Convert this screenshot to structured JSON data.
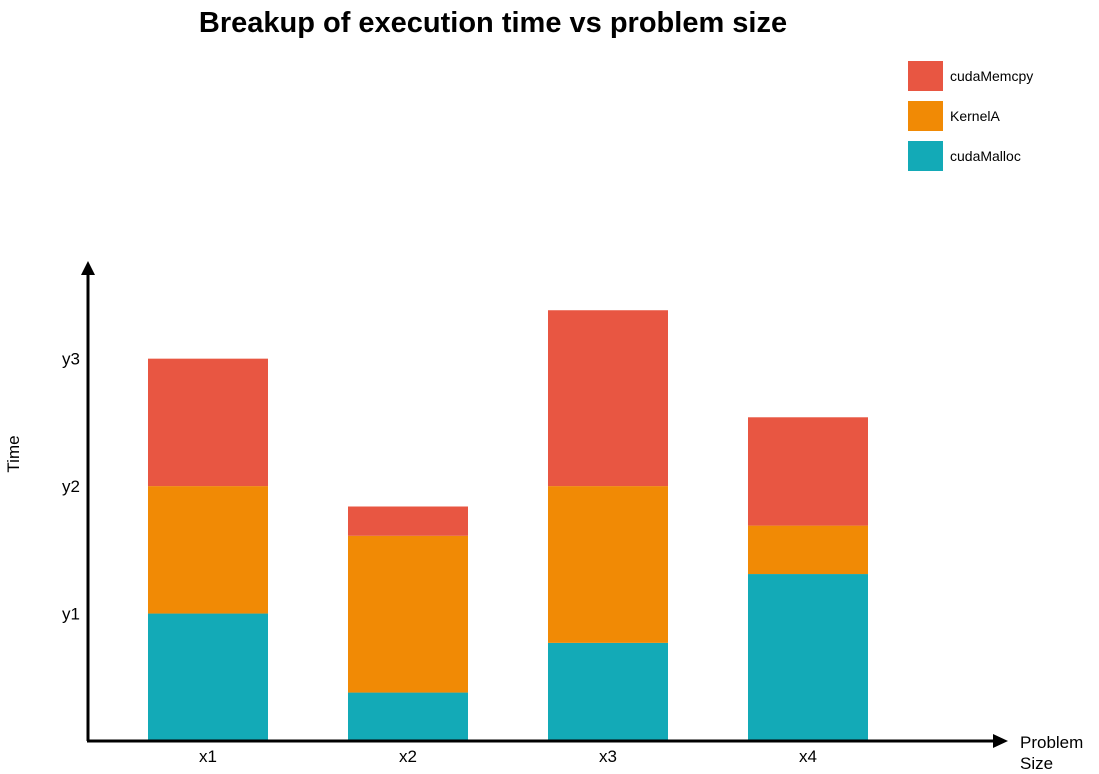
{
  "chart_data": {
    "type": "bar",
    "stacked": true,
    "title": "Breakup of execution time vs problem size",
    "xlabel": [
      "Problem",
      "Size"
    ],
    "ylabel": "Time",
    "categories": [
      "x1",
      "x2",
      "x3",
      "x4"
    ],
    "yticks": [
      {
        "label": "y1",
        "value": 1
      },
      {
        "label": "y2",
        "value": 2
      },
      {
        "label": "y3",
        "value": 3
      }
    ],
    "ylim": [
      0,
      3.68
    ],
    "grid": false,
    "legend_position": "top-right",
    "series": [
      {
        "name": "cudaMalloc",
        "color": "#13aab7",
        "values": [
          1.0,
          0.38,
          0.77,
          1.31
        ]
      },
      {
        "name": "KernelA",
        "color": "#f18a05",
        "values": [
          1.0,
          1.23,
          1.23,
          0.38
        ]
      },
      {
        "name": "cudaMemcpy",
        "color": "#e85642",
        "values": [
          1.0,
          0.23,
          1.38,
          0.85
        ]
      }
    ],
    "legend_order": [
      "cudaMemcpy",
      "KernelA",
      "cudaMalloc"
    ]
  }
}
